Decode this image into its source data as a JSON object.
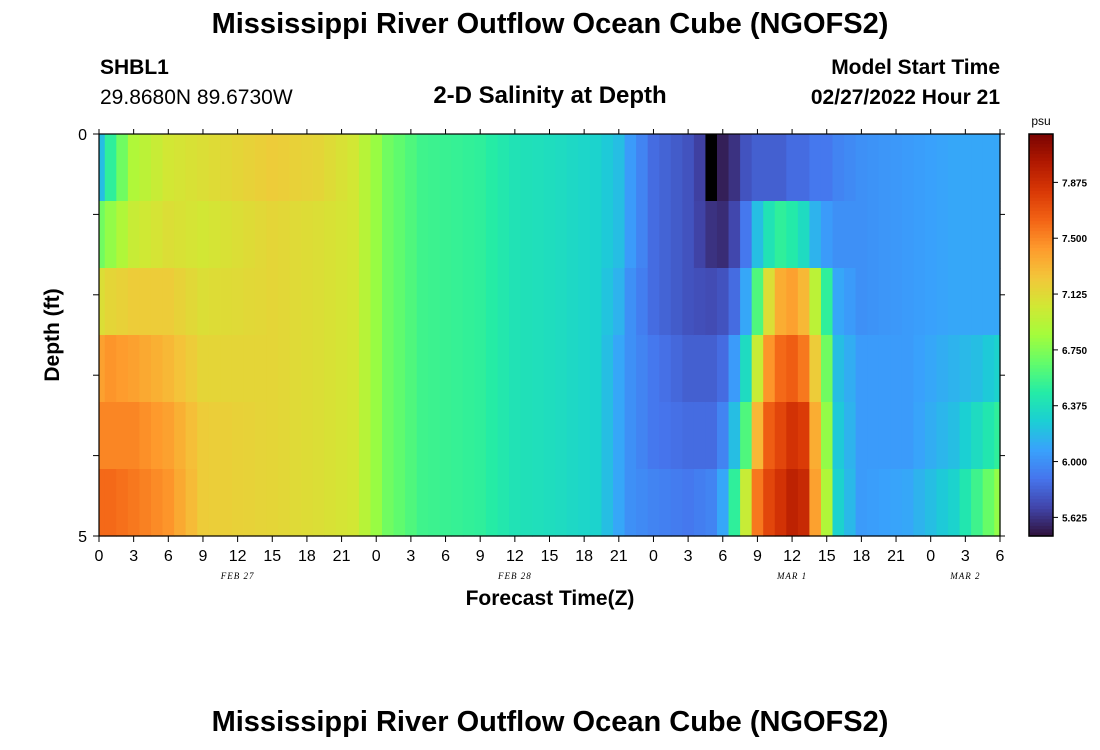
{
  "page": {
    "title": "Mississippi River Outflow Ocean Cube (NGOFS2)",
    "station_id": "SHBL1",
    "station_coords": "29.8680N  89.6730W",
    "plot_title": "2-D Salinity at Depth",
    "start_label": "Model Start Time",
    "start_value": "02/27/2022 Hour 21",
    "next_title": "Mississippi River Outflow Ocean Cube (NGOFS2)"
  },
  "chart_data": {
    "type": "heatmap",
    "title": "2-D Salinity at Depth",
    "xlabel": "Forecast Time(Z)",
    "ylabel": "Depth (ft)",
    "colorbar_unit": "psu",
    "colorbar_ticks": [
      "7.875",
      "7.500",
      "7.125",
      "6.750",
      "6.375",
      "6.000",
      "5.625"
    ],
    "colorbar_tick_values": [
      7.875,
      7.5,
      7.125,
      6.75,
      6.375,
      6.0,
      5.625
    ],
    "value_range": [
      5.5,
      8.2
    ],
    "colormap": [
      "#30123b",
      "#4145ab",
      "#4675ed",
      "#39a2fc",
      "#1bcfd4",
      "#24eca6",
      "#61fc6c",
      "#a4fc3b",
      "#d1e834",
      "#f3c63a",
      "#fe9b2d",
      "#f36315",
      "#d93806",
      "#b11901",
      "#7a0402"
    ],
    "x_range_hours": [
      0,
      78
    ],
    "x_tick_labels": [
      "0",
      "3",
      "6",
      "9",
      "12",
      "15",
      "18",
      "21",
      "0",
      "3",
      "6",
      "9",
      "12",
      "15",
      "18",
      "21",
      "0",
      "3",
      "6",
      "9",
      "12",
      "15",
      "18",
      "21",
      "0",
      "3",
      "6"
    ],
    "day_labels": [
      {
        "label": "FEB 27",
        "hour": 12
      },
      {
        "label": "FEB 28",
        "hour": 36
      },
      {
        "label": "MAR 1",
        "hour": 60
      },
      {
        "label": "MAR 2",
        "hour": 75
      }
    ],
    "y_tick_labels": [
      "0",
      "5"
    ],
    "y_range": [
      0,
      5
    ],
    "depth_layers": 6,
    "x_hours_step": 1,
    "columns": 79,
    "control_points": [
      {
        "h": 0,
        "v": [
          6.2,
          6.7,
          7.1,
          7.4,
          7.5,
          7.6
        ]
      },
      {
        "h": 1,
        "v": [
          6.5,
          6.8,
          7.15,
          7.45,
          7.5,
          7.6
        ]
      },
      {
        "h": 3,
        "v": [
          6.9,
          7.0,
          7.2,
          7.4,
          7.5,
          7.55
        ]
      },
      {
        "h": 6,
        "v": [
          7.05,
          7.1,
          7.2,
          7.3,
          7.4,
          7.45
        ]
      },
      {
        "h": 9,
        "v": [
          7.1,
          7.05,
          7.1,
          7.15,
          7.2,
          7.2
        ]
      },
      {
        "h": 15,
        "v": [
          7.2,
          7.15,
          7.15,
          7.15,
          7.15,
          7.15
        ]
      },
      {
        "h": 19,
        "v": [
          7.15,
          7.1,
          7.1,
          7.1,
          7.1,
          7.1
        ]
      },
      {
        "h": 22,
        "v": [
          7.05,
          7.05,
          7.05,
          7.05,
          7.05,
          7.05
        ]
      },
      {
        "h": 25,
        "v": [
          6.7,
          6.7,
          6.7,
          6.7,
          6.7,
          6.7
        ]
      },
      {
        "h": 28,
        "v": [
          6.55,
          6.55,
          6.55,
          6.55,
          6.55,
          6.55
        ]
      },
      {
        "h": 33,
        "v": [
          6.5,
          6.5,
          6.5,
          6.5,
          6.5,
          6.5
        ]
      },
      {
        "h": 36,
        "v": [
          6.4,
          6.4,
          6.4,
          6.4,
          6.4,
          6.4
        ]
      },
      {
        "h": 40,
        "v": [
          6.35,
          6.35,
          6.35,
          6.35,
          6.35,
          6.35
        ]
      },
      {
        "h": 43,
        "v": [
          6.3,
          6.3,
          6.3,
          6.3,
          6.3,
          6.3
        ]
      },
      {
        "h": 45,
        "v": [
          6.2,
          6.2,
          6.15,
          6.1,
          6.1,
          6.1
        ]
      },
      {
        "h": 46,
        "v": [
          6.05,
          6.05,
          6.0,
          6.0,
          6.0,
          6.0
        ]
      },
      {
        "h": 48,
        "v": [
          5.85,
          5.85,
          5.85,
          5.9,
          5.9,
          5.95
        ]
      },
      {
        "h": 51,
        "v": [
          5.75,
          5.75,
          5.75,
          5.8,
          5.85,
          5.9
        ]
      },
      {
        "h": 53,
        "v": [
          5.6,
          5.62,
          5.72,
          5.8,
          5.85,
          5.95
        ]
      },
      {
        "h": 54,
        "v": [
          5.55,
          5.6,
          5.75,
          5.85,
          5.95,
          6.1
        ]
      },
      {
        "h": 55,
        "v": [
          5.62,
          5.7,
          5.85,
          6.05,
          6.2,
          6.5
        ]
      },
      {
        "h": 56,
        "v": [
          5.75,
          5.9,
          6.1,
          6.35,
          6.6,
          7.0
        ]
      },
      {
        "h": 57,
        "v": [
          5.8,
          6.2,
          6.6,
          7.0,
          7.3,
          7.55
        ]
      },
      {
        "h": 58,
        "v": [
          5.8,
          6.4,
          7.1,
          7.45,
          7.65,
          7.75
        ]
      },
      {
        "h": 59,
        "v": [
          5.8,
          6.5,
          7.35,
          7.6,
          7.75,
          7.85
        ]
      },
      {
        "h": 60,
        "v": [
          5.85,
          6.45,
          7.4,
          7.65,
          7.85,
          7.95
        ]
      },
      {
        "h": 61,
        "v": [
          5.85,
          6.35,
          7.3,
          7.55,
          7.8,
          7.9
        ]
      },
      {
        "h": 62,
        "v": [
          5.9,
          6.15,
          6.95,
          7.2,
          7.35,
          7.4
        ]
      },
      {
        "h": 63,
        "v": [
          5.9,
          6.05,
          6.5,
          6.7,
          6.8,
          6.9
        ]
      },
      {
        "h": 64,
        "v": [
          5.95,
          6.0,
          6.1,
          6.2,
          6.25,
          6.3
        ]
      },
      {
        "h": 66,
        "v": [
          6.0,
          6.0,
          6.0,
          6.05,
          6.05,
          6.05
        ]
      },
      {
        "h": 70,
        "v": [
          6.05,
          6.05,
          6.05,
          6.05,
          6.05,
          6.1
        ]
      },
      {
        "h": 74,
        "v": [
          6.1,
          6.1,
          6.1,
          6.15,
          6.2,
          6.3
        ]
      },
      {
        "h": 76,
        "v": [
          6.1,
          6.1,
          6.1,
          6.2,
          6.35,
          6.55
        ]
      },
      {
        "h": 78,
        "v": [
          6.1,
          6.1,
          6.1,
          6.3,
          6.5,
          6.8
        ]
      }
    ],
    "missing_cells": [
      {
        "h": 53,
        "layer": 0
      }
    ]
  }
}
